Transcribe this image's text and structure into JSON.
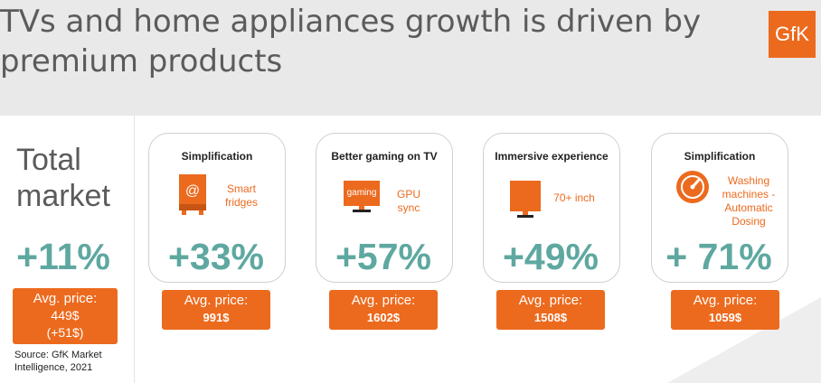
{
  "header": {
    "title": "TVs and home appliances growth is driven by premium products",
    "logo_text": "GfK"
  },
  "total": {
    "label_line1": "Total",
    "label_line2": "market",
    "growth": "+11%",
    "price_label": "Avg. price:",
    "price_value": "449$",
    "price_change": "(+51$)"
  },
  "cards": [
    {
      "title": "Simplification",
      "feature": "Smart fridges",
      "icon": "fridge-icon",
      "growth": "+33%",
      "price_label": "Avg. price:",
      "price_value": "991$"
    },
    {
      "title": "Better gaming on TV",
      "feature": "GPU sync",
      "icon": "tv-gaming-icon",
      "icon_text": "gaming",
      "growth": "+57%",
      "price_label": "Avg. price:",
      "price_value": "1602$"
    },
    {
      "title": "Immersive experience",
      "feature": "70+ inch",
      "icon": "large-tv-icon",
      "growth": "+49%",
      "price_label": "Avg. price:",
      "price_value": "1508$"
    },
    {
      "title": "Simplification",
      "feature": "Washing machines - Automatic Dosing",
      "icon": "gauge-icon",
      "growth": "+ 71%",
      "price_label": "Avg. price:",
      "price_value": "1059$"
    }
  ],
  "source": {
    "line1": "Source: GfK Market",
    "line2": "Intelligence, 2021"
  },
  "colors": {
    "accent": "#ec6a1e",
    "growth": "#5ea8a0",
    "title_text": "#5b5b5b",
    "background": "#e9e9e9"
  }
}
